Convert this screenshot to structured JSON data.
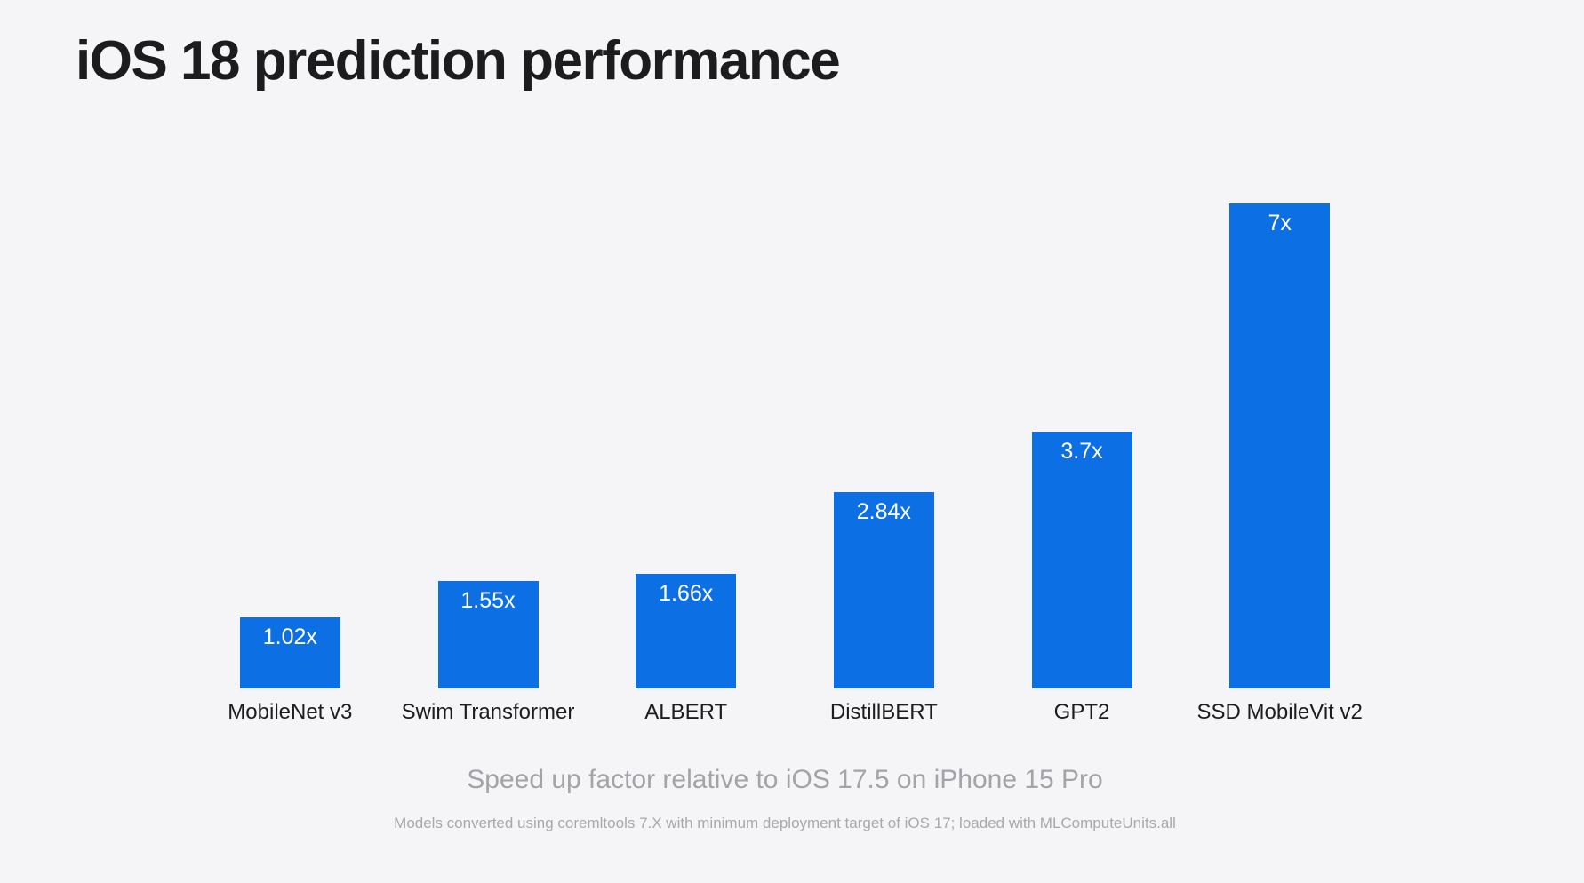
{
  "page": {
    "title": "iOS 18 prediction performance",
    "subtitle": "Speed up factor relative to iOS 17.5 on iPhone 15 Pro",
    "footnote": "Models converted using coremltools 7.X with minimum deployment target of iOS 17; loaded with MLComputeUnits.all"
  },
  "colors": {
    "background": "#f5f5f7",
    "bar": "#0d6fe4",
    "title_text": "#1c1c1e",
    "label_text": "#1d1d1f",
    "value_text": "#ffffff",
    "subtitle_text": "#a3a3a8",
    "footnote_text": "#a8a8ad"
  },
  "chart_data": {
    "type": "bar",
    "title": "iOS 18 prediction performance",
    "categories": [
      "MobileNet v3",
      "Swim Transformer",
      "ALBERT",
      "DistillBERT",
      "GPT2",
      "SSD MobileVit v2"
    ],
    "values": [
      1.02,
      1.55,
      1.66,
      2.84,
      3.7,
      7
    ],
    "value_labels": [
      "1.02x",
      "1.55x",
      "1.66x",
      "2.84x",
      "3.7x",
      "7x"
    ],
    "xlabel": "Speed up factor relative to iOS 17.5 on iPhone 15 Pro",
    "ylabel": "",
    "ylim": [
      0,
      7
    ],
    "grid": false,
    "legend": false,
    "bar_color": "#0d6fe4",
    "annotation": "Models converted using coremltools 7.X with minimum deployment target of iOS 17; loaded with MLComputeUnits.all"
  }
}
